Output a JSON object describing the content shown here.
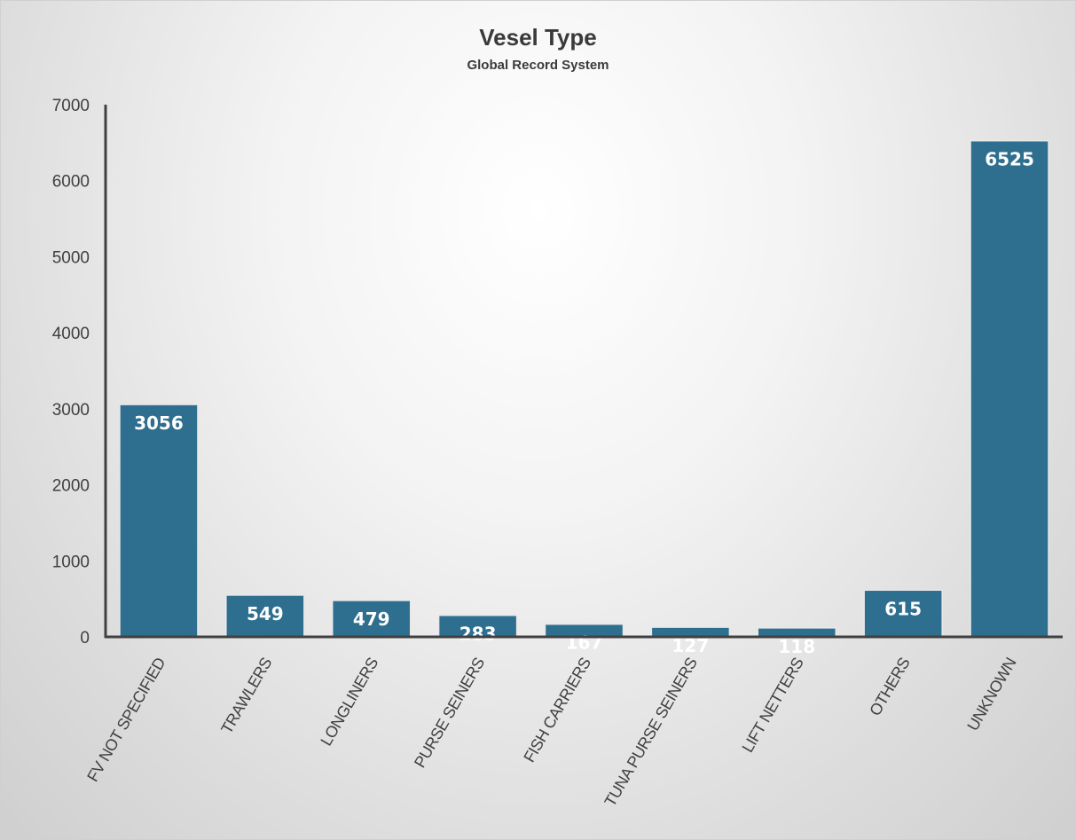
{
  "chart_data": {
    "type": "bar",
    "title": "Vesel Type",
    "subtitle": "Global Record System",
    "xlabel": "",
    "ylabel": "",
    "categories": [
      "FV NOT SPECIFIED",
      "TRAWLERS",
      "LONGLINERS",
      "PURSE SEINERS",
      "FISH CARRIERS",
      "TUNA PURSE SEINERS",
      "LIFT NETTERS",
      "OTHERS",
      "UNKNOWN"
    ],
    "values": [
      3056,
      549,
      479,
      283,
      167,
      127,
      118,
      615,
      6525
    ],
    "yticks": [
      "0",
      "1000",
      "2000",
      "3000",
      "4000",
      "5000",
      "6000",
      "7000"
    ],
    "ylim": [
      0,
      7000
    ],
    "grid": false,
    "legend": "none",
    "bar_color": "#2e6e8e",
    "axis_color": "#404040",
    "label_color": "#ffffff"
  }
}
